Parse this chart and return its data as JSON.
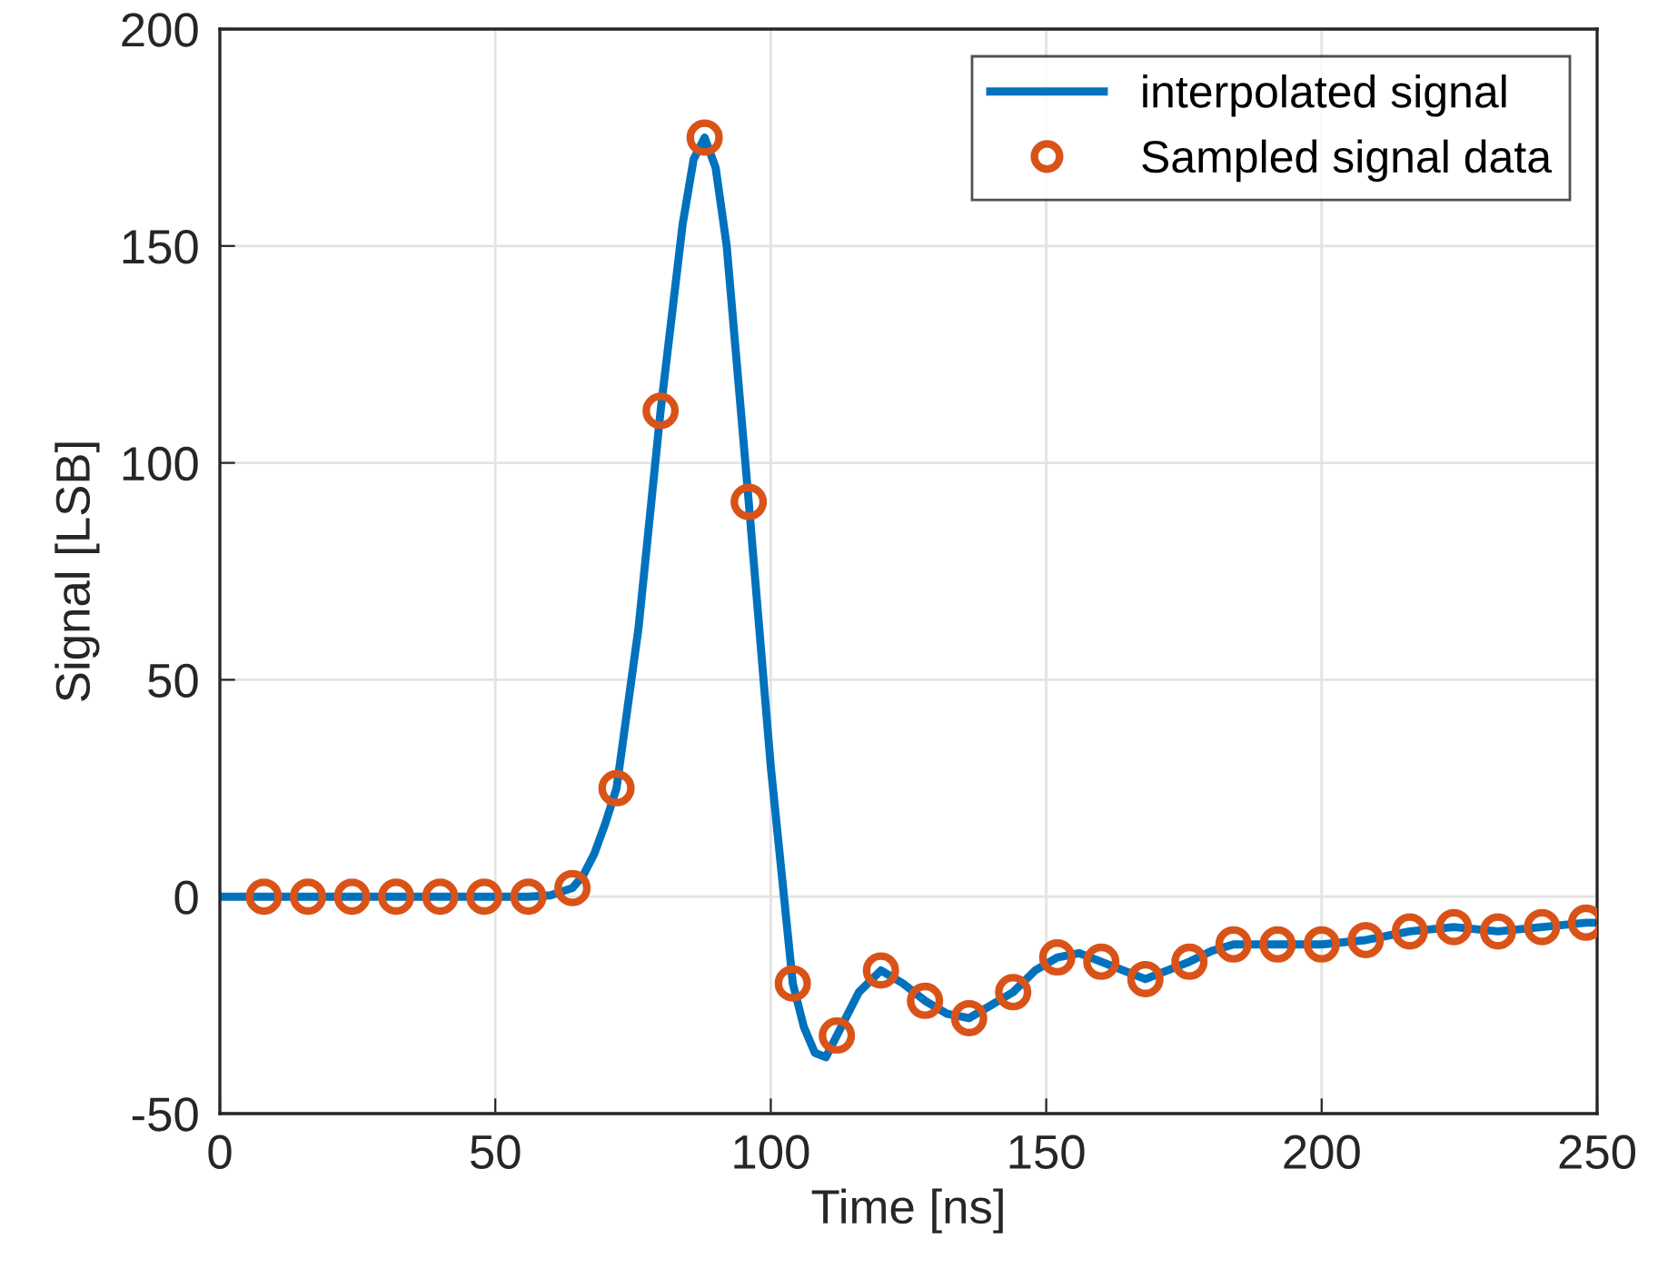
{
  "chart_data": {
    "type": "line",
    "xlabel": "Time [ns]",
    "ylabel": "Signal [LSB]",
    "xlim": [
      0,
      250
    ],
    "ylim": [
      -50,
      200
    ],
    "xticks": [
      0,
      50,
      100,
      150,
      200,
      250
    ],
    "yticks": [
      -50,
      0,
      50,
      100,
      150,
      200
    ],
    "grid": true,
    "legend": "top right",
    "series": [
      {
        "name": "interpolated signal",
        "color": "#0072bd",
        "marker": "none",
        "line_style": "solid",
        "x": [
          0,
          56,
          60,
          64,
          66,
          68,
          70,
          72,
          76,
          80,
          84,
          86,
          88,
          90,
          92,
          96,
          100,
          102,
          104,
          106,
          108,
          110,
          112,
          116,
          120,
          124,
          128,
          132,
          136,
          140,
          144,
          148,
          152,
          156,
          160,
          164,
          168,
          172,
          176,
          180,
          184,
          192,
          200,
          208,
          216,
          224,
          232,
          240,
          248,
          250
        ],
        "values": [
          0,
          0,
          0.3,
          2,
          5,
          10,
          17,
          25,
          62,
          112,
          155,
          170,
          175,
          168,
          150,
          91,
          30,
          5,
          -20,
          -30,
          -36,
          -37,
          -32,
          -22,
          -17,
          -20,
          -24,
          -27,
          -28,
          -25,
          -22,
          -17,
          -14,
          -13,
          -15,
          -17,
          -19,
          -17,
          -15,
          -12.5,
          -11,
          -11,
          -11,
          -10,
          -8,
          -7,
          -8,
          -7,
          -6,
          -6
        ]
      },
      {
        "name": "Sampled signal data",
        "type": "scatter",
        "color": "#d95319",
        "marker": "circle",
        "x": [
          8,
          16,
          24,
          32,
          40,
          48,
          56,
          64,
          72,
          80,
          88,
          96,
          104,
          112,
          120,
          128,
          136,
          144,
          152,
          160,
          168,
          176,
          184,
          192,
          200,
          208,
          216,
          224,
          232,
          240,
          248
        ],
        "values": [
          0,
          0,
          0,
          0,
          0,
          0,
          0,
          2,
          25,
          112,
          175,
          91,
          -20,
          -32,
          -17,
          -24,
          -28,
          -22,
          -14,
          -15,
          -19,
          -15,
          -11,
          -11,
          -11,
          -10,
          -8,
          -7,
          -8,
          -7,
          -6
        ]
      }
    ]
  }
}
